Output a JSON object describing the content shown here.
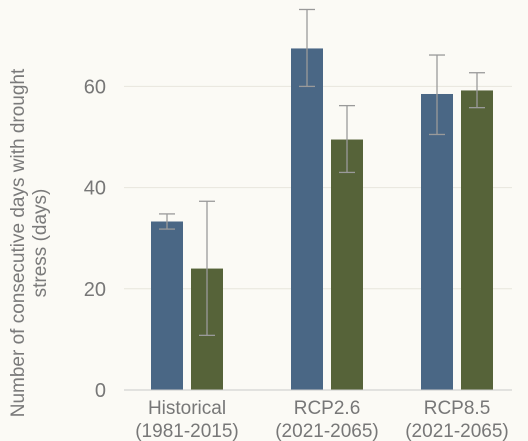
{
  "chart_data": {
    "type": "bar",
    "title": "",
    "xlabel": "",
    "ylabel_lines": [
      "Number of consecutive days with drought",
      "stress (days)"
    ],
    "categories": [
      {
        "line1": "Historical",
        "line2": "(1981-2015)"
      },
      {
        "line1": "RCP2.6",
        "line2": "(2021-2065)"
      },
      {
        "line1": "RCP8.5",
        "line2": "(2021-2065)"
      }
    ],
    "series": [
      {
        "color": "#4a6785",
        "values": [
          33.3,
          67.5,
          58.5
        ],
        "error_low": [
          31.8,
          60.0,
          50.5
        ],
        "error_high": [
          34.8,
          75.2,
          66.2
        ]
      },
      {
        "color": "#566339",
        "values": [
          24.0,
          49.5,
          59.2
        ],
        "error_low": [
          10.8,
          43.0,
          55.8
        ],
        "error_high": [
          37.3,
          56.2,
          62.7
        ]
      }
    ],
    "ylim": [
      0,
      75
    ],
    "yticks": [
      0,
      20,
      40,
      60
    ],
    "grid": true,
    "legend": "none",
    "colors": {
      "grid": "#e8e6dc",
      "baseline": "#c9c9c9",
      "errorbar": "#9a9a9a",
      "text": "#777777",
      "background": "#fbfaf5"
    }
  }
}
